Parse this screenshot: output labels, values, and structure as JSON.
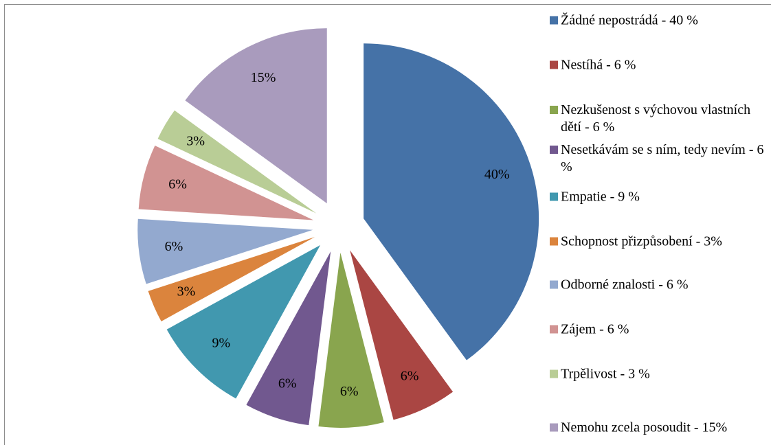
{
  "chart_data": {
    "type": "pie",
    "categories": [
      "Žádné nepostrádá - 40 %",
      "Nestíhá - 6 %",
      "Nezkušenost s výchovou vlastních dětí - 6 %",
      "Nesetkávám se s ním, tedy nevím - 6 %",
      "Empatie - 9 %",
      "Schopnost přizpůsobení - 3%",
      "Odborné znalosti - 6 %",
      "Zájem - 6 %",
      "Trpělivost - 3 %",
      "Nemohu zcela posoudit - 15%"
    ],
    "values": [
      40,
      6,
      6,
      6,
      9,
      3,
      6,
      6,
      3,
      15
    ],
    "value_labels": [
      "40%",
      "6%",
      "6%",
      "6%",
      "9%",
      "3%",
      "6%",
      "6%",
      "3%",
      "15%"
    ],
    "colors": [
      "#4572a7",
      "#aa4643",
      "#89a54e",
      "#71588f",
      "#4198af",
      "#db843d",
      "#93a9cf",
      "#d19392",
      "#b9cd96",
      "#a99bbd"
    ],
    "legend": "right"
  }
}
